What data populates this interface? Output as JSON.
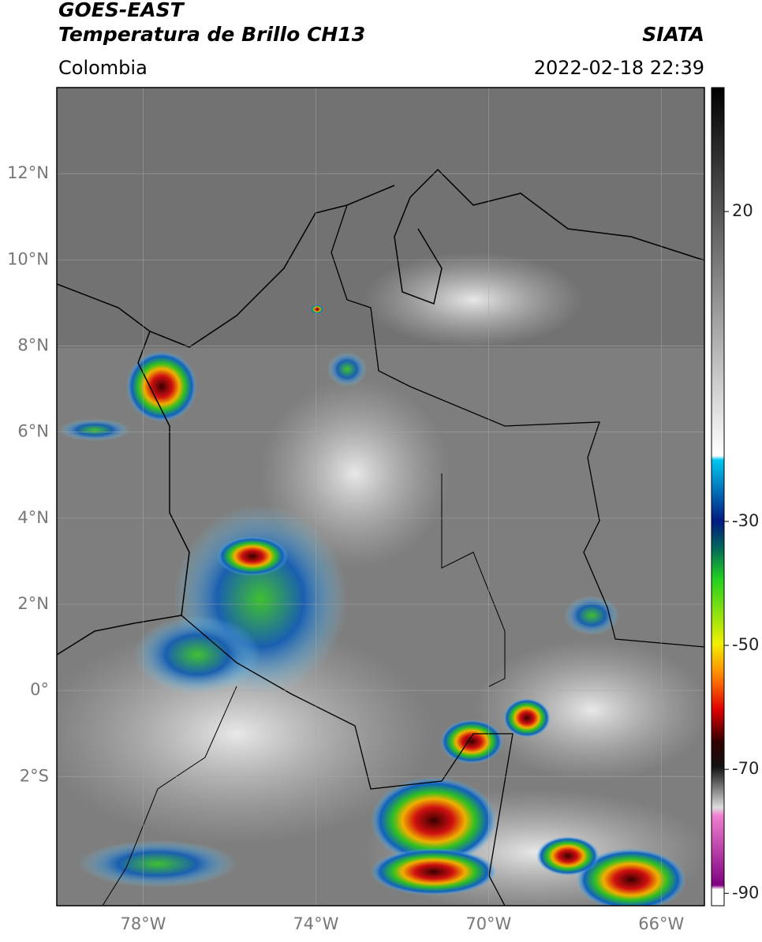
{
  "header": {
    "title": "GOES-EAST",
    "subtitle": "Temperatura de Brillo CH13",
    "source": "SIATA",
    "region": "Colombia",
    "datetime": "2022-02-18 22:39"
  },
  "map": {
    "lonlim": [
      -80,
      -65
    ],
    "latlim": [
      -5,
      14
    ],
    "lon_ticks": [
      {
        "value": -78,
        "label": "78°W"
      },
      {
        "value": -74,
        "label": "74°W"
      },
      {
        "value": -70,
        "label": "70°W"
      },
      {
        "value": -66,
        "label": "66°W"
      }
    ],
    "lat_ticks": [
      {
        "value": 12,
        "label": "12°N"
      },
      {
        "value": 10,
        "label": "10°N"
      },
      {
        "value": 8,
        "label": "8°N"
      },
      {
        "value": 6,
        "label": "6°N"
      },
      {
        "value": 4,
        "label": "4°N"
      },
      {
        "value": 2,
        "label": "2°N"
      },
      {
        "value": 0,
        "label": "0°"
      },
      {
        "value": -2,
        "label": "2°S"
      }
    ]
  },
  "colorbar": {
    "lim": [
      -92,
      40
    ],
    "ticks": [
      20,
      -30,
      -50,
      -70,
      -90
    ]
  }
}
